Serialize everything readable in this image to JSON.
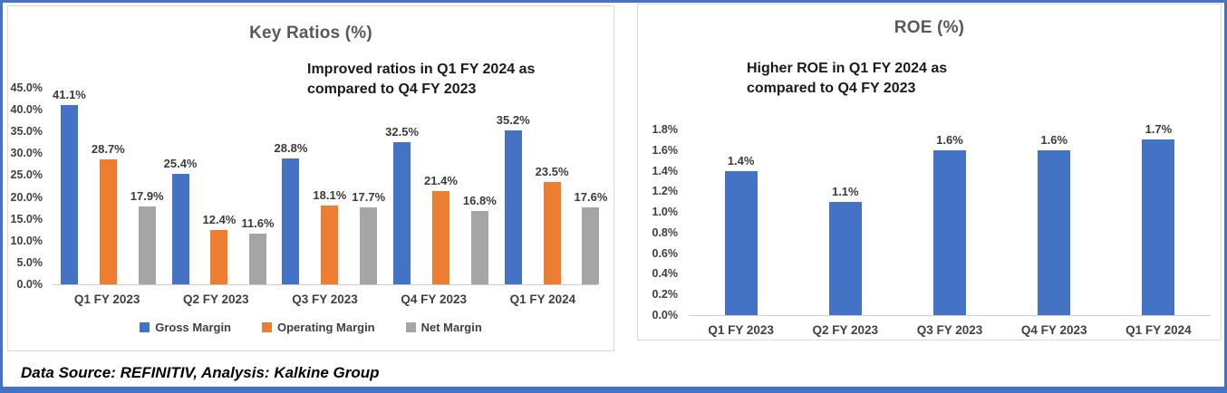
{
  "footer": {
    "text": "Data Source: REFINITIV, Analysis: Kalkine Group"
  },
  "colors": {
    "frame_border": "#4472C4",
    "box_border": "#D9D9D9",
    "bar_blue": "#4472C4",
    "bar_orange": "#ED7D31",
    "bar_gray": "#A5A5A5",
    "axis_text": "#404040",
    "title_text": "#595959"
  },
  "chart_data": [
    {
      "type": "bar",
      "title": "Key Ratios (%)",
      "annotation_lines": [
        "Improved ratios in Q1 FY 2024 as",
        "compared to Q4 FY 2023"
      ],
      "categories": [
        "Q1 FY 2023",
        "Q2 FY 2023",
        "Q3 FY 2023",
        "Q4 FY 2023",
        "Q1 FY 2024"
      ],
      "series": [
        {
          "name": "Gross Margin",
          "color": "#4472C4",
          "values": [
            41.1,
            25.4,
            28.8,
            32.5,
            35.2
          ]
        },
        {
          "name": "Operating Margin",
          "color": "#ED7D31",
          "values": [
            28.7,
            12.4,
            18.1,
            21.4,
            23.5
          ]
        },
        {
          "name": "Net Margin",
          "color": "#A5A5A5",
          "values": [
            17.9,
            11.6,
            17.7,
            16.8,
            17.6
          ]
        }
      ],
      "ylim": [
        0,
        45
      ],
      "ytick_step": 5,
      "tick_format": "percent_1dp",
      "data_label_format": "percent_1dp",
      "grid": false,
      "legend": true,
      "legend_position": "bottom"
    },
    {
      "type": "bar",
      "title": "ROE (%)",
      "annotation_lines": [
        "Higher ROE in Q1 FY 2024 as",
        "compared to Q4 FY 2023"
      ],
      "categories": [
        "Q1 FY 2023",
        "Q2 FY 2023",
        "Q3 FY 2023",
        "Q4 FY 2023",
        "Q1 FY 2024"
      ],
      "series": [
        {
          "name": "ROE",
          "color": "#4472C4",
          "values": [
            1.4,
            1.1,
            1.6,
            1.6,
            1.7
          ]
        }
      ],
      "ylim": [
        0,
        1.8
      ],
      "ytick_step": 0.2,
      "tick_format": "percent_1dp",
      "data_label_format": "percent_1dp",
      "grid": false,
      "legend": false
    }
  ]
}
